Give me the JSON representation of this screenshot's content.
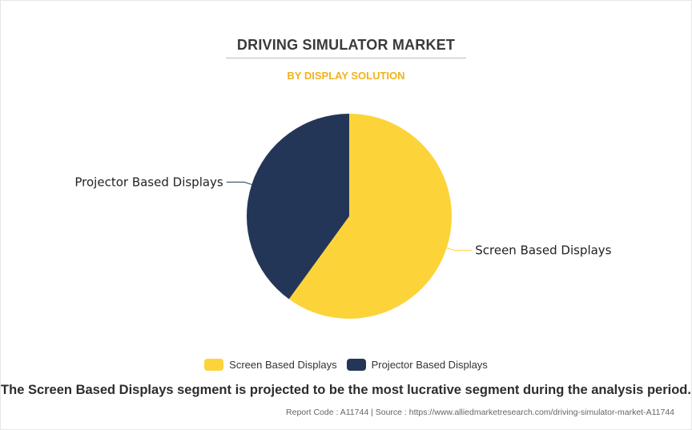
{
  "header": {
    "title": "DRIVING SIMULATOR MARKET",
    "subtitle": "BY DISPLAY SOLUTION"
  },
  "chart_data": {
    "type": "pie",
    "title": "DRIVING SIMULATOR MARKET",
    "subtitle": "BY DISPLAY SOLUTION",
    "slices": [
      {
        "label": "Screen Based Displays",
        "value": 60,
        "color": "#fdd33a"
      },
      {
        "label": "Projector Based Displays",
        "value": 40,
        "color": "#243657"
      }
    ],
    "legend": "bottom-center",
    "start_angle": "12 o'clock, clockwise"
  },
  "legend": {
    "items": [
      {
        "label": "Screen Based Displays",
        "color": "#fdd33a"
      },
      {
        "label": "Projector Based Displays",
        "color": "#243657"
      }
    ]
  },
  "footer": {
    "takeaway": "The Screen Based Displays segment is projected to be the most lucrative segment during the analysis period.",
    "source": "Report Code : A11744  |  Source : https://www.alliedmarketresearch.com/driving-simulator-market-A11744"
  }
}
